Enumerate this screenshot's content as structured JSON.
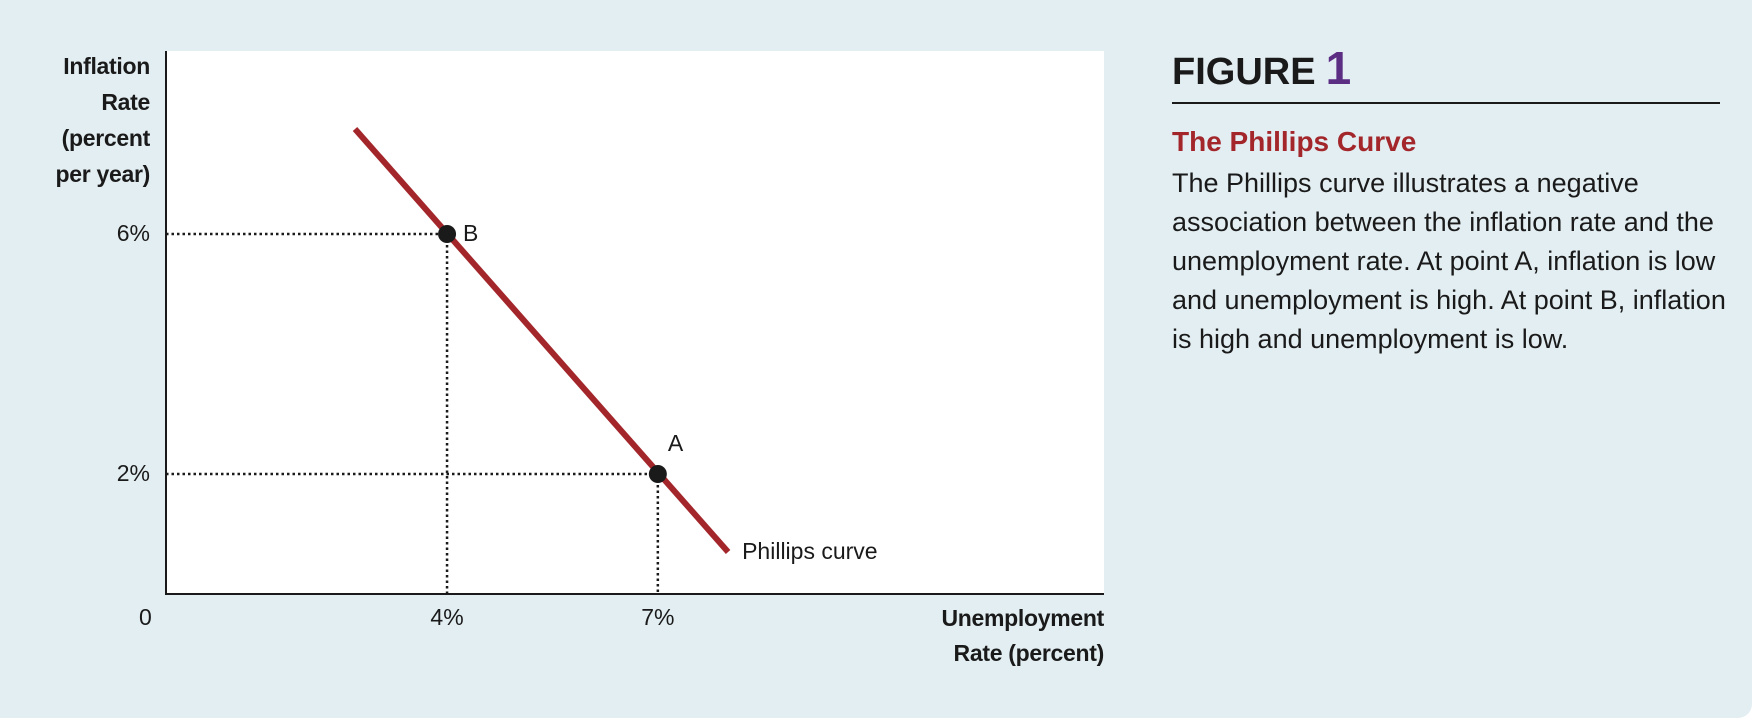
{
  "chart_data": {
    "type": "line",
    "ylabel_lines": [
      "Inflation",
      "Rate",
      "(percent",
      "per year)"
    ],
    "xlabel_lines": [
      "Unemployment",
      "Rate (percent)"
    ],
    "origin_label": "0",
    "x_ticks": [
      {
        "value": 4,
        "label": "4%"
      },
      {
        "value": 7,
        "label": "7%"
      }
    ],
    "y_ticks": [
      {
        "value": 6,
        "label": "6%"
      },
      {
        "value": 2,
        "label": "2%"
      }
    ],
    "xlim": [
      0,
      13.35
    ],
    "ylim": [
      0,
      9.05
    ],
    "series": [
      {
        "name": "Phillips curve",
        "color": "#a3262b",
        "x": [
          2.69,
          8.0
        ],
        "y": [
          7.75,
          0.7
        ]
      }
    ],
    "points": [
      {
        "label": "B",
        "x": 4,
        "y": 6
      },
      {
        "label": "A",
        "x": 7,
        "y": 2
      }
    ],
    "grid": false
  },
  "figure": {
    "heading": "FIGURE",
    "number": "1",
    "title": "The Phillips Curve",
    "caption": "The Phillips curve illustrates a negative association between the inflation rate and the unemployment rate. At point A, inflation is low and unemployment is high. At point B, inflation is high and unemployment is low."
  }
}
